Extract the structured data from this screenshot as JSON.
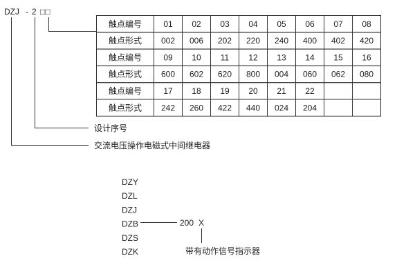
{
  "model": {
    "prefix": "DZJ",
    "dash": "-",
    "digit": "2",
    "boxes": "□□"
  },
  "table": {
    "rows": [
      [
        "触点编号",
        "01",
        "02",
        "03",
        "04",
        "05",
        "06",
        "07",
        "08"
      ],
      [
        "触点形式",
        "002",
        "006",
        "202",
        "220",
        "240",
        "400",
        "402",
        "420"
      ],
      [
        "触点编号",
        "09",
        "10",
        "11",
        "12",
        "13",
        "14",
        "15",
        "16"
      ],
      [
        "触点形式",
        "600",
        "602",
        "620",
        "800",
        "004",
        "060",
        "062",
        "080"
      ],
      [
        "触点编号",
        "17",
        "18",
        "19",
        "20",
        "21",
        "22",
        "",
        ""
      ],
      [
        "触点形式",
        "242",
        "260",
        "422",
        "440",
        "024",
        "204",
        "",
        ""
      ]
    ]
  },
  "labels": {
    "design_serial": "设计序号",
    "relay_type": "交流电压操作电磁式中间继电器"
  },
  "series": {
    "items": [
      "DZY",
      "DZL",
      "DZJ",
      "DZB",
      "DZS",
      "DZK"
    ],
    "code": "200",
    "suffix": "X",
    "suffix_label": "带有动作信号指示器"
  }
}
